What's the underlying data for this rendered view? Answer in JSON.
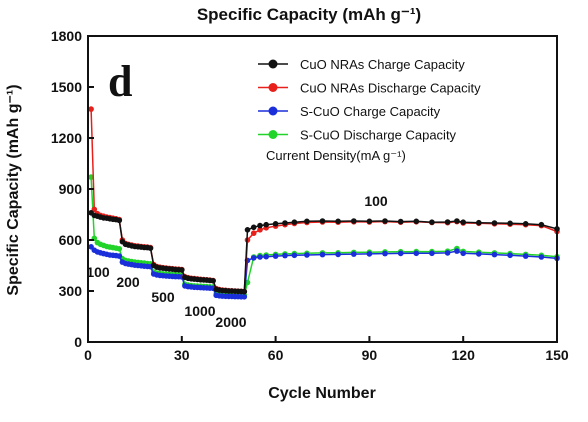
{
  "chart_data": {
    "type": "line",
    "title": "Specific Capacity (mAh g⁻¹)",
    "panel_label": "d",
    "xlabel": "Cycle Number",
    "ylabel": "Specific Capacity (mAh g⁻¹)",
    "xlim": [
      0,
      150
    ],
    "ylim": [
      0,
      1800
    ],
    "xticks": [
      0,
      30,
      60,
      90,
      120,
      150
    ],
    "yticks": [
      0,
      300,
      600,
      900,
      1200,
      1500,
      1800
    ],
    "grid": false,
    "legend_position": "top-right",
    "legend_note": "Current Density(mA g⁻¹)",
    "series": [
      {
        "name": "CuO NRAs Charge Capacity",
        "color": "#111111",
        "points": [
          [
            1,
            760
          ],
          [
            2,
            745
          ],
          [
            3,
            740
          ],
          [
            4,
            735
          ],
          [
            5,
            730
          ],
          [
            6,
            728
          ],
          [
            7,
            725
          ],
          [
            8,
            722
          ],
          [
            9,
            720
          ],
          [
            10,
            715
          ],
          [
            11,
            590
          ],
          [
            12,
            575
          ],
          [
            13,
            570
          ],
          [
            14,
            565
          ],
          [
            15,
            562
          ],
          [
            16,
            560
          ],
          [
            17,
            558
          ],
          [
            18,
            556
          ],
          [
            19,
            555
          ],
          [
            20,
            552
          ],
          [
            21,
            450
          ],
          [
            22,
            440
          ],
          [
            23,
            436
          ],
          [
            24,
            434
          ],
          [
            25,
            432
          ],
          [
            26,
            430
          ],
          [
            27,
            428
          ],
          [
            28,
            426
          ],
          [
            29,
            425
          ],
          [
            30,
            424
          ],
          [
            31,
            380
          ],
          [
            32,
            375
          ],
          [
            33,
            372
          ],
          [
            34,
            370
          ],
          [
            35,
            368
          ],
          [
            36,
            366
          ],
          [
            37,
            365
          ],
          [
            38,
            364
          ],
          [
            39,
            362
          ],
          [
            40,
            360
          ],
          [
            41,
            310
          ],
          [
            42,
            305
          ],
          [
            43,
            303
          ],
          [
            44,
            302
          ],
          [
            45,
            300
          ],
          [
            46,
            300
          ],
          [
            47,
            299
          ],
          [
            48,
            298
          ],
          [
            49,
            297
          ],
          [
            50,
            296
          ],
          [
            51,
            660
          ],
          [
            53,
            675
          ],
          [
            55,
            685
          ],
          [
            57,
            690
          ],
          [
            60,
            695
          ],
          [
            63,
            700
          ],
          [
            66,
            705
          ],
          [
            70,
            710
          ],
          [
            75,
            712
          ],
          [
            80,
            710
          ],
          [
            85,
            712
          ],
          [
            90,
            710
          ],
          [
            95,
            712
          ],
          [
            100,
            708
          ],
          [
            105,
            710
          ],
          [
            110,
            705
          ],
          [
            115,
            706
          ],
          [
            118,
            712
          ],
          [
            120,
            705
          ],
          [
            125,
            702
          ],
          [
            130,
            700
          ],
          [
            135,
            698
          ],
          [
            140,
            695
          ],
          [
            145,
            690
          ],
          [
            150,
            665
          ]
        ]
      },
      {
        "name": "CuO NRAs Discharge Capacity",
        "color": "#e8201c",
        "points": [
          [
            1,
            1370
          ],
          [
            2,
            780
          ],
          [
            3,
            755
          ],
          [
            4,
            745
          ],
          [
            5,
            740
          ],
          [
            6,
            735
          ],
          [
            7,
            732
          ],
          [
            8,
            728
          ],
          [
            9,
            725
          ],
          [
            10,
            720
          ],
          [
            11,
            600
          ],
          [
            12,
            580
          ],
          [
            13,
            574
          ],
          [
            14,
            570
          ],
          [
            15,
            566
          ],
          [
            16,
            564
          ],
          [
            17,
            562
          ],
          [
            18,
            560
          ],
          [
            19,
            558
          ],
          [
            20,
            555
          ],
          [
            21,
            455
          ],
          [
            22,
            444
          ],
          [
            23,
            440
          ],
          [
            24,
            437
          ],
          [
            25,
            435
          ],
          [
            26,
            433
          ],
          [
            27,
            431
          ],
          [
            28,
            429
          ],
          [
            29,
            428
          ],
          [
            30,
            426
          ],
          [
            31,
            384
          ],
          [
            32,
            378
          ],
          [
            33,
            375
          ],
          [
            34,
            373
          ],
          [
            35,
            371
          ],
          [
            36,
            369
          ],
          [
            37,
            367
          ],
          [
            38,
            366
          ],
          [
            39,
            364
          ],
          [
            40,
            362
          ],
          [
            41,
            314
          ],
          [
            42,
            308
          ],
          [
            43,
            306
          ],
          [
            44,
            304
          ],
          [
            45,
            302
          ],
          [
            46,
            301
          ],
          [
            47,
            300
          ],
          [
            48,
            299
          ],
          [
            49,
            298
          ],
          [
            50,
            297
          ],
          [
            51,
            600
          ],
          [
            53,
            640
          ],
          [
            55,
            660
          ],
          [
            57,
            672
          ],
          [
            60,
            682
          ],
          [
            63,
            690
          ],
          [
            66,
            697
          ],
          [
            70,
            703
          ],
          [
            75,
            706
          ],
          [
            80,
            705
          ],
          [
            85,
            707
          ],
          [
            90,
            706
          ],
          [
            95,
            708
          ],
          [
            100,
            705
          ],
          [
            105,
            707
          ],
          [
            110,
            703
          ],
          [
            115,
            702
          ],
          [
            118,
            708
          ],
          [
            120,
            700
          ],
          [
            125,
            698
          ],
          [
            130,
            695
          ],
          [
            135,
            693
          ],
          [
            140,
            690
          ],
          [
            145,
            685
          ],
          [
            150,
            650
          ]
        ]
      },
      {
        "name": "S-CuO Charge Capacity",
        "color": "#1a2fd9",
        "points": [
          [
            1,
            560
          ],
          [
            2,
            540
          ],
          [
            3,
            530
          ],
          [
            4,
            525
          ],
          [
            5,
            520
          ],
          [
            6,
            516
          ],
          [
            7,
            512
          ],
          [
            8,
            510
          ],
          [
            9,
            508
          ],
          [
            10,
            505
          ],
          [
            11,
            470
          ],
          [
            12,
            462
          ],
          [
            13,
            458
          ],
          [
            14,
            455
          ],
          [
            15,
            452
          ],
          [
            16,
            450
          ],
          [
            17,
            448
          ],
          [
            18,
            446
          ],
          [
            19,
            445
          ],
          [
            20,
            443
          ],
          [
            21,
            400
          ],
          [
            22,
            395
          ],
          [
            23,
            392
          ],
          [
            24,
            390
          ],
          [
            25,
            388
          ],
          [
            26,
            387
          ],
          [
            27,
            386
          ],
          [
            28,
            385
          ],
          [
            29,
            384
          ],
          [
            30,
            383
          ],
          [
            31,
            330
          ],
          [
            32,
            326
          ],
          [
            33,
            324
          ],
          [
            34,
            322
          ],
          [
            35,
            321
          ],
          [
            36,
            320
          ],
          [
            37,
            319
          ],
          [
            38,
            318
          ],
          [
            39,
            317
          ],
          [
            40,
            316
          ],
          [
            41,
            275
          ],
          [
            42,
            272
          ],
          [
            43,
            270
          ],
          [
            44,
            269
          ],
          [
            45,
            268
          ],
          [
            46,
            268
          ],
          [
            47,
            267
          ],
          [
            48,
            267
          ],
          [
            49,
            266
          ],
          [
            50,
            266
          ],
          [
            51,
            480
          ],
          [
            53,
            495
          ],
          [
            55,
            500
          ],
          [
            57,
            502
          ],
          [
            60,
            505
          ],
          [
            63,
            508
          ],
          [
            66,
            510
          ],
          [
            70,
            512
          ],
          [
            75,
            514
          ],
          [
            80,
            515
          ],
          [
            85,
            517
          ],
          [
            90,
            518
          ],
          [
            95,
            520
          ],
          [
            100,
            521
          ],
          [
            105,
            522
          ],
          [
            110,
            522
          ],
          [
            115,
            524
          ],
          [
            118,
            535
          ],
          [
            120,
            522
          ],
          [
            125,
            518
          ],
          [
            130,
            514
          ],
          [
            135,
            510
          ],
          [
            140,
            505
          ],
          [
            145,
            500
          ],
          [
            150,
            492
          ]
        ]
      },
      {
        "name": "S-CuO Discharge Capacity",
        "color": "#22d42a",
        "points": [
          [
            1,
            970
          ],
          [
            2,
            610
          ],
          [
            3,
            585
          ],
          [
            4,
            575
          ],
          [
            5,
            568
          ],
          [
            6,
            562
          ],
          [
            7,
            558
          ],
          [
            8,
            555
          ],
          [
            9,
            552
          ],
          [
            10,
            548
          ],
          [
            11,
            490
          ],
          [
            12,
            480
          ],
          [
            13,
            476
          ],
          [
            14,
            473
          ],
          [
            15,
            470
          ],
          [
            16,
            468
          ],
          [
            17,
            466
          ],
          [
            18,
            464
          ],
          [
            19,
            462
          ],
          [
            20,
            460
          ],
          [
            21,
            412
          ],
          [
            22,
            406
          ],
          [
            23,
            403
          ],
          [
            24,
            401
          ],
          [
            25,
            399
          ],
          [
            26,
            398
          ],
          [
            27,
            397
          ],
          [
            28,
            396
          ],
          [
            29,
            395
          ],
          [
            30,
            394
          ],
          [
            31,
            340
          ],
          [
            32,
            335
          ],
          [
            33,
            332
          ],
          [
            34,
            330
          ],
          [
            35,
            329
          ],
          [
            36,
            328
          ],
          [
            37,
            327
          ],
          [
            38,
            326
          ],
          [
            39,
            325
          ],
          [
            40,
            324
          ],
          [
            41,
            284
          ],
          [
            42,
            280
          ],
          [
            43,
            278
          ],
          [
            44,
            277
          ],
          [
            45,
            276
          ],
          [
            46,
            276
          ],
          [
            47,
            275
          ],
          [
            48,
            275
          ],
          [
            49,
            274
          ],
          [
            50,
            274
          ],
          [
            51,
            350
          ],
          [
            53,
            500
          ],
          [
            55,
            508
          ],
          [
            57,
            512
          ],
          [
            60,
            515
          ],
          [
            63,
            518
          ],
          [
            66,
            520
          ],
          [
            70,
            522
          ],
          [
            75,
            524
          ],
          [
            80,
            525
          ],
          [
            85,
            527
          ],
          [
            90,
            528
          ],
          [
            95,
            530
          ],
          [
            100,
            531
          ],
          [
            105,
            532
          ],
          [
            110,
            532
          ],
          [
            115,
            534
          ],
          [
            118,
            550
          ],
          [
            120,
            533
          ],
          [
            125,
            528
          ],
          [
            130,
            524
          ],
          [
            135,
            520
          ],
          [
            140,
            515
          ],
          [
            145,
            510
          ],
          [
            150,
            502
          ]
        ]
      }
    ],
    "annotations": [
      "100",
      "200",
      "500",
      "1000",
      "2000",
      "100"
    ]
  }
}
